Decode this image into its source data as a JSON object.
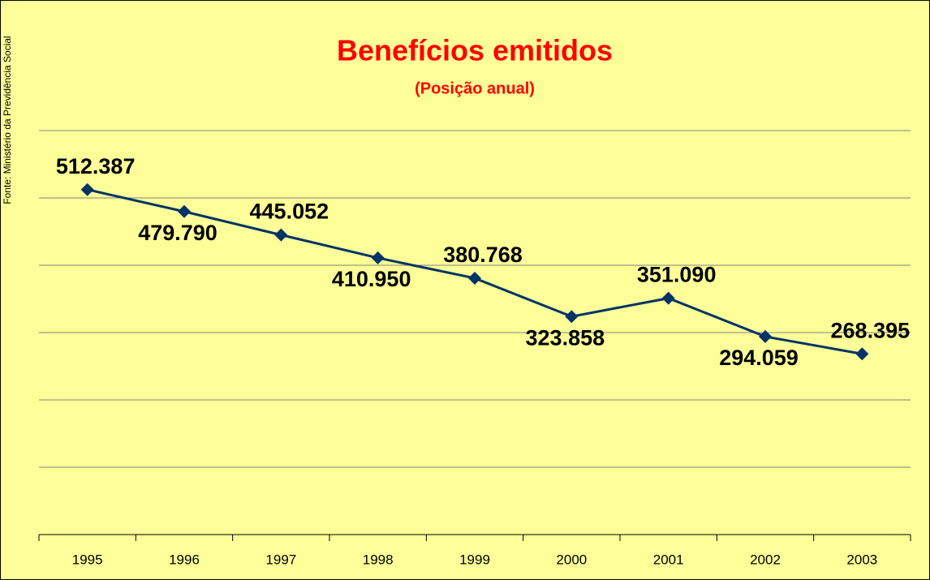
{
  "chart_data": {
    "type": "line",
    "title": "Benefícios emitidos",
    "subtitle": "(Posição anual)",
    "source": "Fonte: Ministério da Previdência Social",
    "categories": [
      "1995",
      "1996",
      "1997",
      "1998",
      "1999",
      "2000",
      "2001",
      "2002",
      "2003"
    ],
    "series": [
      {
        "name": "Benefícios emitidos",
        "color": "#003366",
        "values": [
          512387,
          479790,
          445052,
          410950,
          380768,
          323858,
          351090,
          294059,
          268395
        ],
        "value_labels": [
          "512.387",
          "479.790",
          "445.052",
          "410.950",
          "380.768",
          "323.858",
          "351.090",
          "294.059",
          "268.395"
        ]
      }
    ],
    "ylim": [
      0,
      600000
    ],
    "yticks": [
      0,
      100000,
      200000,
      300000,
      400000,
      500000,
      600000
    ],
    "grid": true
  }
}
